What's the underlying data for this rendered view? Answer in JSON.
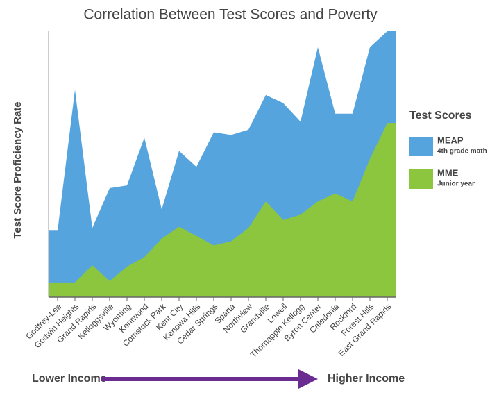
{
  "chart_data": {
    "type": "area",
    "title": "Correlation Between Test Scores and Poverty",
    "y_label": "Test Score Proficiency Rate",
    "legend_title": "Test Scores",
    "categories": [
      "Godfrey-Lee",
      "Godwin Heights",
      "Grand Rapids",
      "Kelloggsville",
      "Wyoming",
      "Kentwood",
      "Comstock Park",
      "Kent City",
      "Kenowa Hills",
      "Cedar Springs",
      "Sparta",
      "Northview",
      "Grandville",
      "Lowell",
      "Thornapple Kellogg",
      "Byron Center",
      "Caledonia",
      "Rockford",
      "Forest Hills",
      "East Grand Rapids"
    ],
    "series": [
      {
        "name": "MEAP",
        "description": "4th grade math",
        "color": "#55a4dd",
        "values": [
          25,
          78,
          26,
          41,
          42,
          60,
          33,
          55,
          49,
          62,
          61,
          63,
          76,
          73,
          66,
          94,
          69,
          69,
          94,
          100
        ]
      },
      {
        "name": "MME",
        "description": "Junior year",
        "color": "#8cc63f",
        "values": [
          5.5,
          5.5,
          12,
          6,
          11.5,
          15,
          22,
          26.5,
          23,
          19.5,
          21,
          26,
          36,
          29,
          31,
          36,
          39,
          36,
          52,
          65.5
        ]
      }
    ],
    "ylim": [
      0,
      100
    ],
    "annotations": {
      "left": "Lower Income",
      "right": "Higher Income",
      "arrow_color": "#6b2c91"
    }
  }
}
